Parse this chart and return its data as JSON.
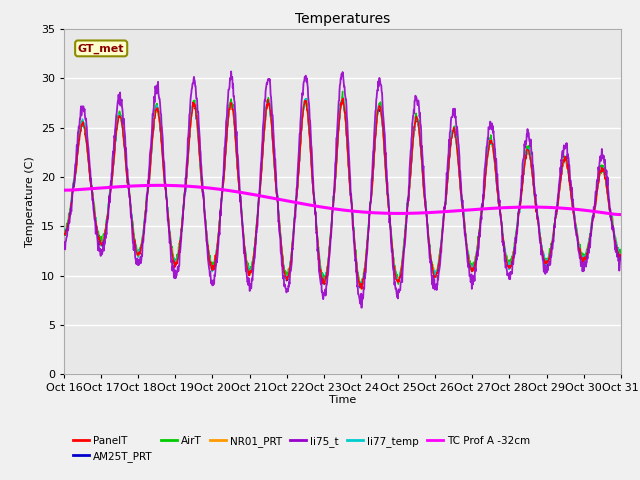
{
  "title": "Temperatures",
  "xlabel": "Time",
  "ylabel": "Temperature (C)",
  "ylim": [
    0,
    35
  ],
  "xlim": [
    0,
    15
  ],
  "x_tick_labels": [
    "Oct 16",
    "Oct 17",
    "Oct 18",
    "Oct 19",
    "Oct 20",
    "Oct 21",
    "Oct 22",
    "Oct 23",
    "Oct 24",
    "Oct 25",
    "Oct 26",
    "Oct 27",
    "Oct 28",
    "Oct 29",
    "Oct 30",
    "Oct 31"
  ],
  "legend_entries": [
    "PanelT",
    "AM25T_PRT",
    "AirT",
    "NR01_PRT",
    "li75_t",
    "li77_temp",
    "TC Prof A -32cm"
  ],
  "legend_colors": [
    "#ff0000",
    "#0000cc",
    "#00cc00",
    "#ff9900",
    "#9900cc",
    "#00cccc",
    "#ff00ff"
  ],
  "gt_met_label": "GT_met",
  "background_color": "#e8e8e8",
  "n_points": 1440
}
